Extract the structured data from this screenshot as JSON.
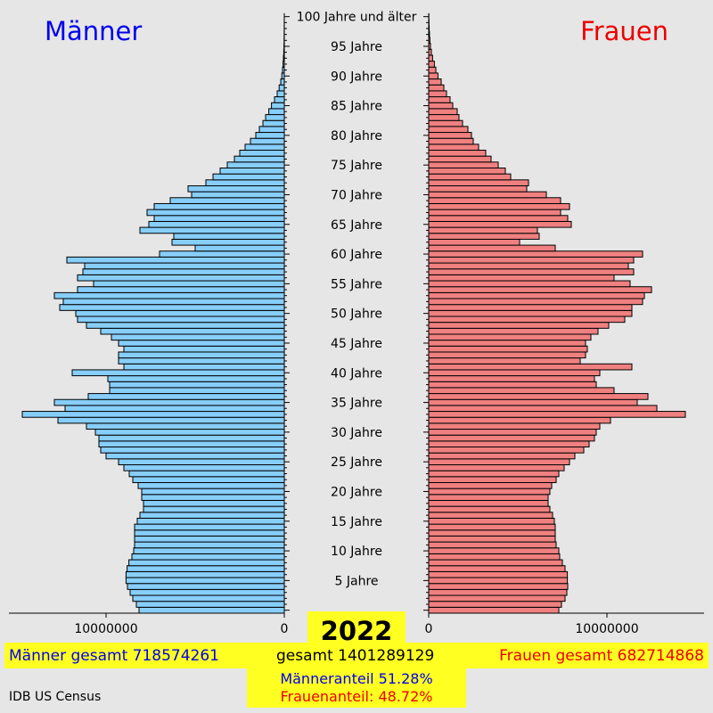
{
  "header": {
    "men_title": "Männer",
    "women_title": "Frauen"
  },
  "year": "2022",
  "summary": {
    "men_total": "Männer gesamt 718574261",
    "grand_total": "gesamt 1401289129",
    "women_total": "Frauen gesamt 682714868",
    "men_share": "Männeranteil 51.28%",
    "women_share": "Frauenanteil: 48.72%"
  },
  "source": "IDB US Census",
  "colors": {
    "men_bar": "#87cefa",
    "women_bar": "#f08080",
    "men_text": "#0000ee",
    "women_text": "#ee0000",
    "highlight": "#ffff22"
  },
  "chart_data": {
    "type": "bar",
    "orientation": "horizontal",
    "subtype": "population-pyramid",
    "age_groups": [
      0,
      1,
      2,
      3,
      4,
      5,
      6,
      7,
      8,
      9,
      10,
      11,
      12,
      13,
      14,
      15,
      16,
      17,
      18,
      19,
      20,
      21,
      22,
      23,
      24,
      25,
      26,
      27,
      28,
      29,
      30,
      31,
      32,
      33,
      34,
      35,
      36,
      37,
      38,
      39,
      40,
      41,
      42,
      43,
      44,
      45,
      46,
      47,
      48,
      49,
      50,
      51,
      52,
      53,
      54,
      55,
      56,
      57,
      58,
      59,
      60,
      61,
      62,
      63,
      64,
      65,
      66,
      67,
      68,
      69,
      70,
      71,
      72,
      73,
      74,
      75,
      76,
      77,
      78,
      79,
      80,
      81,
      82,
      83,
      84,
      85,
      86,
      87,
      88,
      89,
      90,
      91,
      92,
      93,
      94,
      95,
      96,
      97,
      98,
      99,
      100
    ],
    "age_tick_labels": [
      {
        "age": 5,
        "label": "5 Jahre"
      },
      {
        "age": 10,
        "label": "10 Jahre"
      },
      {
        "age": 15,
        "label": "15 Jahre"
      },
      {
        "age": 20,
        "label": "20 Jahre"
      },
      {
        "age": 25,
        "label": "25 Jahre"
      },
      {
        "age": 30,
        "label": "30 Jahre"
      },
      {
        "age": 35,
        "label": "35 Jahre"
      },
      {
        "age": 40,
        "label": "40 Jahre"
      },
      {
        "age": 45,
        "label": "45 Jahre"
      },
      {
        "age": 50,
        "label": "50 Jahre"
      },
      {
        "age": 55,
        "label": "55 Jahre"
      },
      {
        "age": 60,
        "label": "60 Jahre"
      },
      {
        "age": 65,
        "label": "65 Jahre"
      },
      {
        "age": 70,
        "label": "70 Jahre"
      },
      {
        "age": 75,
        "label": "75 Jahre"
      },
      {
        "age": 80,
        "label": "80 Jahre"
      },
      {
        "age": 85,
        "label": "85 Jahre"
      },
      {
        "age": 90,
        "label": "90 Jahre"
      },
      {
        "age": 95,
        "label": "95 Jahre"
      },
      {
        "age": 100,
        "label": "100 Jahre und älter"
      }
    ],
    "x_ticks": [
      {
        "value": 0,
        "label": "0"
      },
      {
        "value": 10000000,
        "label": "10000000"
      }
    ],
    "xlim": [
      0,
      15500000
    ],
    "series": [
      {
        "name": "Männer",
        "side": "left",
        "values": [
          8150000,
          8300000,
          8500000,
          8650000,
          8800000,
          8880000,
          8880000,
          8820000,
          8720000,
          8550000,
          8450000,
          8400000,
          8400000,
          8400000,
          8400000,
          8250000,
          8100000,
          7900000,
          7900000,
          8000000,
          8000000,
          8200000,
          8500000,
          8700000,
          9000000,
          9300000,
          10000000,
          10300000,
          10400000,
          10400000,
          10600000,
          11100000,
          12700000,
          14700000,
          12300000,
          12900000,
          11000000,
          9800000,
          9800000,
          9900000,
          11900000,
          9000000,
          9300000,
          9300000,
          9000000,
          9300000,
          9700000,
          10300000,
          11100000,
          11600000,
          11700000,
          12600000,
          12400000,
          12900000,
          11600000,
          10700000,
          11600000,
          11300000,
          11200000,
          12200000,
          7000000,
          5000000,
          6300000,
          6200000,
          8100000,
          7600000,
          7300000,
          7700000,
          7300000,
          6400000,
          5200000,
          5400000,
          4400000,
          4000000,
          3600000,
          3200000,
          2800000,
          2500000,
          2200000,
          1900000,
          1600000,
          1400000,
          1200000,
          1050000,
          870000,
          720000,
          550000,
          400000,
          290000,
          200000,
          140000,
          100000,
          70000,
          50000,
          30000,
          20000,
          12000,
          8000,
          5000,
          3000,
          2000
        ]
      },
      {
        "name": "Frauen",
        "side": "right",
        "values": [
          7300000,
          7450000,
          7650000,
          7750000,
          7800000,
          7780000,
          7780000,
          7650000,
          7500000,
          7350000,
          7300000,
          7150000,
          7100000,
          7100000,
          7100000,
          7050000,
          6950000,
          6800000,
          6700000,
          6700000,
          6800000,
          6900000,
          7150000,
          7300000,
          7600000,
          7900000,
          8200000,
          8700000,
          9000000,
          9300000,
          9400000,
          9600000,
          10200000,
          14400000,
          12800000,
          11700000,
          12300000,
          10400000,
          9400000,
          9300000,
          9600000,
          11400000,
          8500000,
          8800000,
          8900000,
          8800000,
          9100000,
          9500000,
          10100000,
          11000000,
          11400000,
          11400000,
          12000000,
          12100000,
          12500000,
          11300000,
          10400000,
          11500000,
          11200000,
          11500000,
          12000000,
          7100000,
          5100000,
          6200000,
          6100000,
          8000000,
          7800000,
          7400000,
          7900000,
          7400000,
          6600000,
          5500000,
          5600000,
          4600000,
          4300000,
          3900000,
          3500000,
          3200000,
          2800000,
          2500000,
          2400000,
          2200000,
          1900000,
          1700000,
          1600000,
          1350000,
          1200000,
          1000000,
          850000,
          700000,
          520000,
          400000,
          320000,
          220000,
          150000,
          100000,
          70000,
          45000,
          28000,
          17000,
          10000
        ]
      }
    ]
  }
}
